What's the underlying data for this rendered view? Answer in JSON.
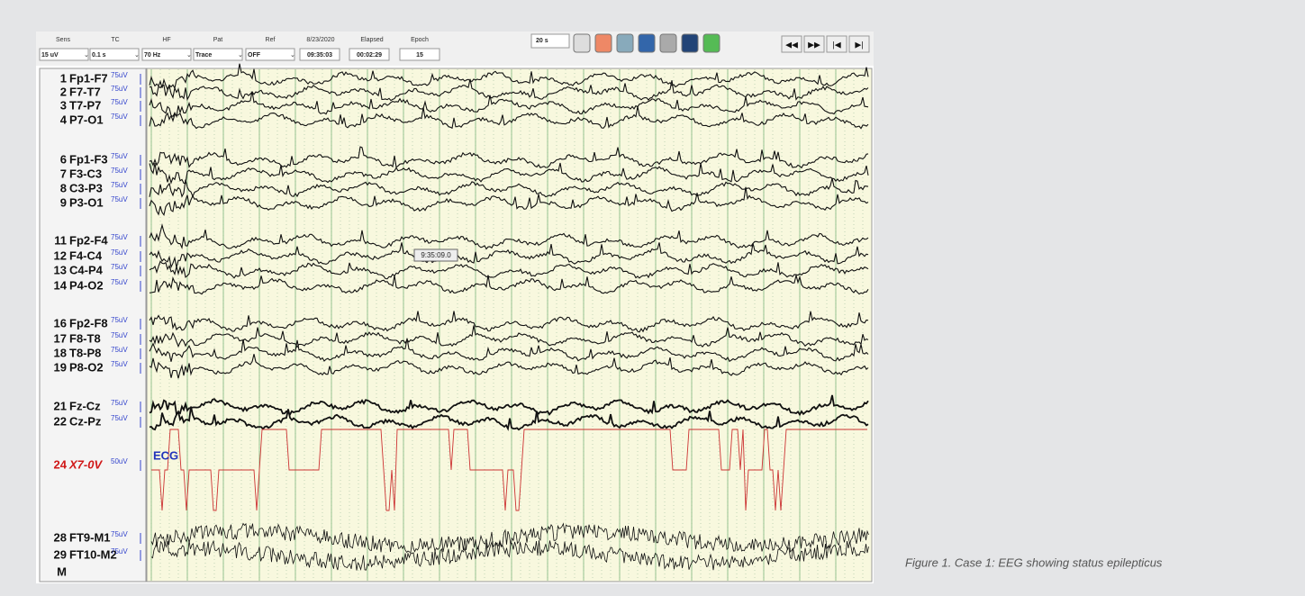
{
  "toolbar": {
    "fields": [
      {
        "label": "Sens",
        "value": "15 uV"
      },
      {
        "label": "TC",
        "value": "0.1 s"
      },
      {
        "label": "HF",
        "value": "70 Hz"
      },
      {
        "label": "Pat",
        "value": "Trace"
      },
      {
        "label": "Ref",
        "value": "OFF"
      },
      {
        "label": "8/23/2020",
        "value": "09:35:03"
      },
      {
        "label": "Elapsed",
        "value": "00:02:29"
      },
      {
        "label": "Epoch",
        "value": "15"
      }
    ],
    "page_length": "20 s"
  },
  "channels": [
    {
      "number": 1,
      "name": "Fp1-F7",
      "scale": "75uV"
    },
    {
      "number": 2,
      "name": "F7-T7",
      "scale": "75uV"
    },
    {
      "number": 3,
      "name": "T7-P7",
      "scale": "75uV"
    },
    {
      "number": 4,
      "name": "P7-O1",
      "scale": "75uV"
    },
    {
      "number": 6,
      "name": "Fp1-F3",
      "scale": "75uV"
    },
    {
      "number": 7,
      "name": "F3-C3",
      "scale": "75uV"
    },
    {
      "number": 8,
      "name": "C3-P3",
      "scale": "75uV"
    },
    {
      "number": 9,
      "name": "P3-O1",
      "scale": "75uV"
    },
    {
      "number": 11,
      "name": "Fp2-F4",
      "scale": "75uV"
    },
    {
      "number": 12,
      "name": "F4-C4",
      "scale": "75uV"
    },
    {
      "number": 13,
      "name": "C4-P4",
      "scale": "75uV"
    },
    {
      "number": 14,
      "name": "P4-O2",
      "scale": "75uV"
    },
    {
      "number": 16,
      "name": "Fp2-F8",
      "scale": "75uV"
    },
    {
      "number": 17,
      "name": "F8-T8",
      "scale": "75uV"
    },
    {
      "number": 18,
      "name": "T8-P8",
      "scale": "75uV"
    },
    {
      "number": 19,
      "name": "P8-O2",
      "scale": "75uV"
    },
    {
      "number": 21,
      "name": "Fz-Cz",
      "scale": "75uV"
    },
    {
      "number": 22,
      "name": "Cz-Pz",
      "scale": "75uV"
    },
    {
      "number": 24,
      "name": "X7-0V",
      "scale": "50uV"
    },
    {
      "number": 28,
      "name": "FT9-M1",
      "scale": "75uV"
    },
    {
      "number": 29,
      "name": "FT10-M2",
      "scale": "75uV"
    }
  ],
  "montage_marker": "M",
  "ecg_label": "ECG",
  "cursor_time": "9:35:09.0",
  "caption": "Figure 1. Case 1: EEG showing status epilepticus"
}
